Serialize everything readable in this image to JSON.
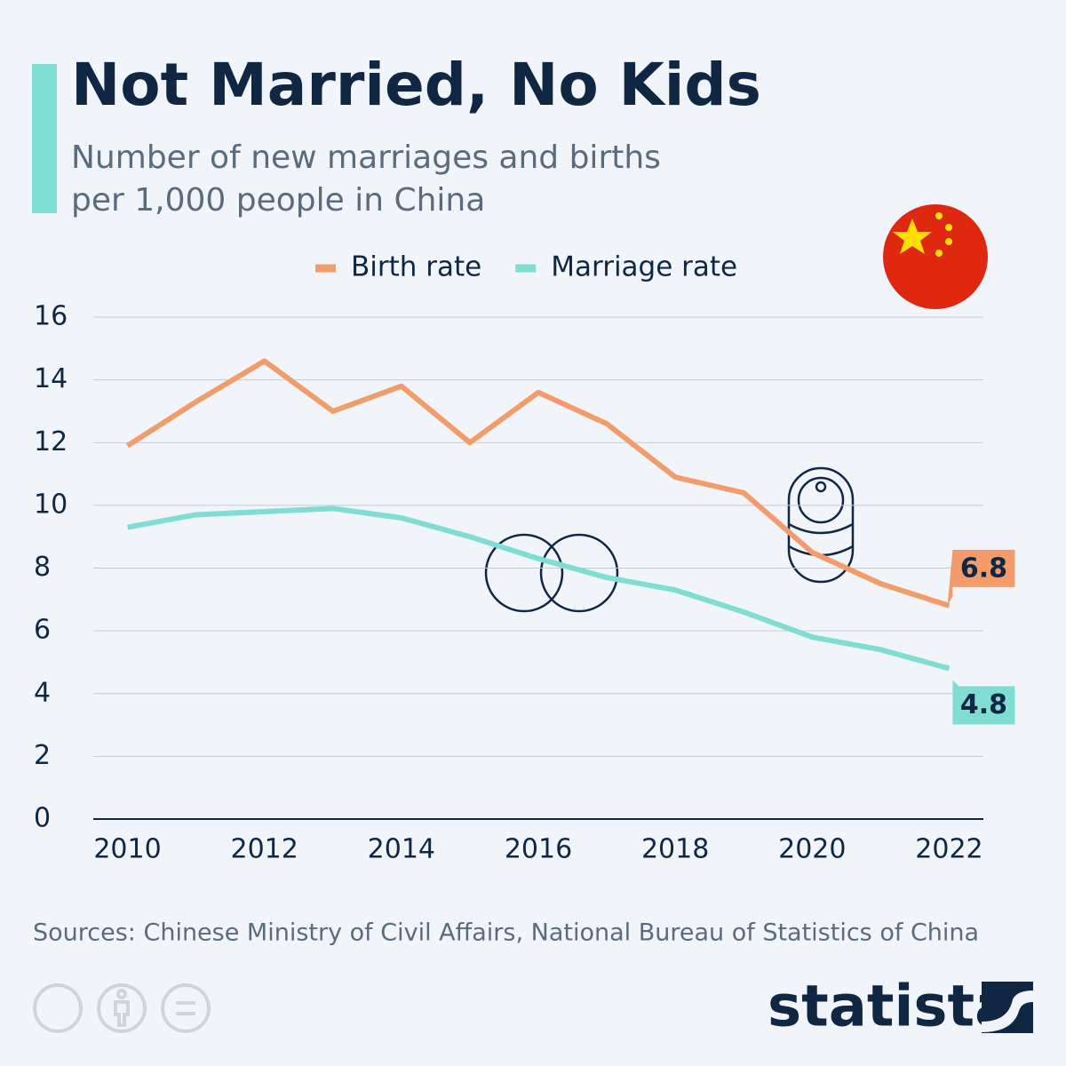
{
  "chart_data": {
    "type": "line",
    "title": "Not Married, No Kids",
    "subtitle": [
      "Number of new marriages and births",
      "per 1,000 people in China"
    ],
    "x": [
      2010,
      2011,
      2012,
      2013,
      2014,
      2015,
      2016,
      2017,
      2018,
      2019,
      2020,
      2021,
      2022
    ],
    "series": [
      {
        "name": "Birth rate",
        "color": "#f39c6b",
        "values": [
          11.9,
          13.3,
          14.6,
          13.0,
          13.8,
          12.0,
          13.6,
          12.6,
          10.9,
          10.4,
          8.5,
          7.5,
          6.8
        ]
      },
      {
        "name": "Marriage rate",
        "color": "#7fddd4",
        "values": [
          9.3,
          9.7,
          9.8,
          9.9,
          9.6,
          9.0,
          8.3,
          7.7,
          7.3,
          6.6,
          5.8,
          5.4,
          4.8
        ]
      }
    ],
    "xlim": [
      2009.5,
      2022.5
    ],
    "xticks": [
      2010,
      2012,
      2014,
      2016,
      2018,
      2020,
      2022
    ],
    "ylim": [
      0,
      16
    ],
    "yticks": [
      0,
      2,
      4,
      6,
      8,
      10,
      12,
      14,
      16
    ],
    "grid": true,
    "legend": "top",
    "source": "Sources: Chinese Ministry of Civil Affairs, National Bureau of Statistics of China",
    "brand": "statista"
  }
}
